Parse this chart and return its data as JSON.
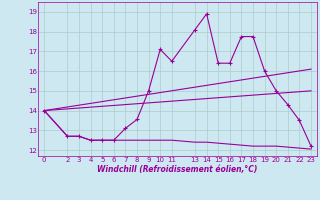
{
  "bg_color": "#cde8f0",
  "line_color": "#990099",
  "xlim": [
    -0.5,
    23.5
  ],
  "ylim": [
    11.7,
    19.5
  ],
  "xticks": [
    0,
    2,
    3,
    4,
    5,
    6,
    7,
    8,
    9,
    10,
    11,
    13,
    14,
    15,
    16,
    17,
    18,
    19,
    20,
    21,
    22,
    23
  ],
  "yticks": [
    12,
    13,
    14,
    15,
    16,
    17,
    18,
    19
  ],
  "xlabel": "Windchill (Refroidissement éolien,°C)",
  "line1_x": [
    0,
    2,
    3,
    4,
    5,
    6,
    7,
    8,
    9,
    10,
    11,
    13,
    14,
    15,
    16,
    17,
    18,
    19,
    20,
    21,
    22,
    23
  ],
  "line1_y": [
    14.0,
    12.7,
    12.7,
    12.5,
    12.5,
    12.5,
    13.1,
    13.55,
    15.0,
    17.1,
    16.5,
    18.1,
    18.9,
    16.4,
    16.4,
    17.75,
    17.75,
    16.0,
    15.0,
    14.3,
    13.5,
    12.2
  ],
  "line2_x": [
    0,
    23
  ],
  "line2_y": [
    14.0,
    16.1
  ],
  "line3_x": [
    0,
    23
  ],
  "line3_y": [
    14.0,
    15.0
  ],
  "line4_x": [
    0,
    2,
    3,
    4,
    5,
    6,
    7,
    8,
    9,
    10,
    11,
    13,
    14,
    15,
    16,
    17,
    18,
    19,
    20,
    21,
    22,
    23
  ],
  "line4_y": [
    14.0,
    12.7,
    12.7,
    12.5,
    12.5,
    12.5,
    12.5,
    12.5,
    12.5,
    12.5,
    12.5,
    12.4,
    12.4,
    12.35,
    12.3,
    12.25,
    12.2,
    12.2,
    12.2,
    12.15,
    12.1,
    12.05
  ],
  "grid_color": "#aacccc",
  "tick_fontsize": 5.0,
  "xlabel_fontsize": 5.5
}
